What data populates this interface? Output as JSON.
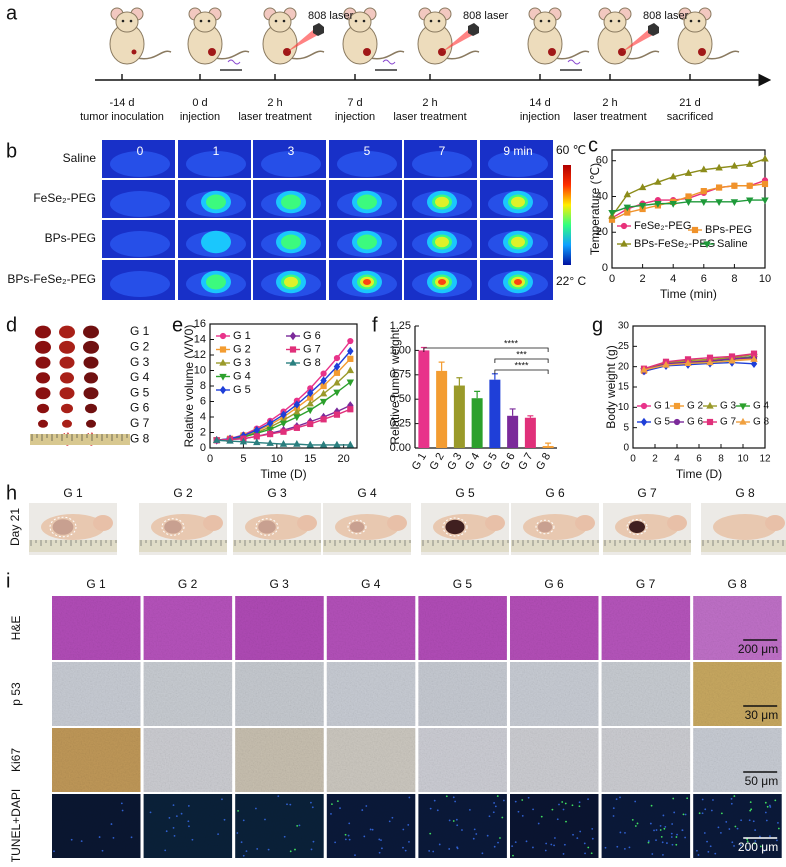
{
  "panel_labels": [
    "a",
    "b",
    "c",
    "d",
    "e",
    "f",
    "g",
    "h",
    "i"
  ],
  "timeline": {
    "laser": "808 laser",
    "events": [
      {
        "day": "-14 d",
        "label": "tumor inoculation"
      },
      {
        "day": "0 d",
        "label": "injection"
      },
      {
        "day": "2 h",
        "label": "laser treatment"
      },
      {
        "day": "7 d",
        "label": "injection"
      },
      {
        "day": "2 h",
        "label": "laser treatment"
      },
      {
        "day": "14 d",
        "label": "injection"
      },
      {
        "day": "2 h",
        "label": "laser treatment"
      },
      {
        "day": "21 d",
        "label": "sacrificed"
      }
    ]
  },
  "thermal": {
    "rows": [
      "Saline",
      "FeSe₂-PEG",
      "BPs-PEG",
      "BPs-FeSe₂-PEG"
    ],
    "times": [
      "0",
      "1",
      "3",
      "5",
      "7",
      "9 min"
    ],
    "scale_max": "60 ℃",
    "scale_min": "22° C"
  },
  "tumor_photos": {
    "labels": [
      "G 1",
      "G 2",
      "G 3",
      "G 4",
      "G 5",
      "G 6",
      "G 7",
      "G 8"
    ]
  },
  "mouse_photos": {
    "day": "Day 21",
    "groups": [
      "G 1",
      "G 2",
      "G 3",
      "G 4",
      "G 5",
      "G 6",
      "G 7",
      "G 8"
    ]
  },
  "histology": {
    "groups": [
      "G 1",
      "G 2",
      "G 3",
      "G 4",
      "G 5",
      "G 6",
      "G 7",
      "G 8"
    ],
    "stains": [
      "H&E",
      "p 53",
      "Ki67",
      "TUNEL+DAPI"
    ],
    "scale_bars": [
      "200 μm",
      "30 μm",
      "50 μm",
      "200 μm"
    ]
  },
  "chart_data": [
    {
      "type": "line",
      "ylabel": "Temperature (℃)",
      "xlabel": "Time (min)",
      "xlim": [
        0,
        10
      ],
      "xticks": [
        0,
        2,
        4,
        6,
        8,
        10
      ],
      "ylim": [
        0,
        66
      ],
      "yticks": [
        0,
        20,
        40,
        60
      ],
      "x": [
        0,
        1,
        2,
        3,
        4,
        5,
        6,
        7,
        8,
        9,
        10
      ],
      "series": [
        {
          "name": "FeSe₂-PEG",
          "color": "#e8317a",
          "marker": "circle",
          "values": [
            28,
            33,
            36,
            38,
            38,
            39,
            42,
            45,
            46,
            46,
            49
          ]
        },
        {
          "name": "BPs-PEG",
          "color": "#f0932b",
          "marker": "square",
          "values": [
            27,
            31,
            33,
            35,
            37,
            40,
            43,
            45,
            46,
            46,
            47
          ]
        },
        {
          "name": "BPs-FeSe₂-PEG",
          "color": "#8c8c1a",
          "marker": "triangle",
          "values": [
            29,
            41,
            45,
            48,
            51,
            53,
            55,
            56,
            57,
            58,
            61
          ]
        },
        {
          "name": "Saline",
          "color": "#1f9a3a",
          "marker": "triangle-down",
          "values": [
            31,
            34,
            35,
            36,
            36,
            37,
            37,
            37,
            37,
            38,
            38
          ]
        }
      ]
    },
    {
      "type": "line",
      "ylabel": "Relative volume (V/V0)",
      "xlabel": "Time (D)",
      "xlim": [
        0,
        22
      ],
      "xticks": [
        0,
        5,
        10,
        15,
        20
      ],
      "ylim": [
        0,
        16
      ],
      "yticks": [
        0,
        2,
        4,
        6,
        8,
        10,
        12,
        14,
        16
      ],
      "x": [
        1,
        3,
        5,
        7,
        9,
        11,
        13,
        15,
        17,
        19,
        21
      ],
      "series": [
        {
          "name": "G 1",
          "color": "#e8338a",
          "marker": "circle",
          "values": [
            1,
            1.2,
            1.7,
            2.5,
            3.5,
            4.7,
            6.1,
            7.7,
            9.6,
            11.6,
            13.8
          ]
        },
        {
          "name": "G 2",
          "color": "#f39c31",
          "marker": "square",
          "values": [
            1,
            1.2,
            1.6,
            2.2,
            3.0,
            4.0,
            5.2,
            6.5,
            8.0,
            9.7,
            11.5
          ]
        },
        {
          "name": "G 3",
          "color": "#9a9a2a",
          "marker": "triangle",
          "values": [
            1,
            1.1,
            1.5,
            2.0,
            2.7,
            3.6,
            4.6,
            5.7,
            7.0,
            8.4,
            10.0
          ]
        },
        {
          "name": "G 4",
          "color": "#2ca02c",
          "marker": "triangle-down",
          "values": [
            1,
            1.1,
            1.4,
            1.9,
            2.4,
            3.2,
            4.0,
            4.9,
            6.0,
            7.2,
            8.5
          ]
        },
        {
          "name": "G 5",
          "color": "#1f3fd8",
          "marker": "diamond",
          "values": [
            1,
            1.2,
            1.6,
            2.3,
            3.2,
            4.3,
            5.6,
            7.1,
            8.7,
            10.5,
            12.5
          ]
        },
        {
          "name": "G 6",
          "color": "#7b2a9a",
          "marker": "diamond",
          "values": [
            1,
            1.1,
            1.2,
            1.5,
            1.9,
            2.3,
            2.8,
            3.4,
            4.0,
            4.7,
            5.5
          ]
        },
        {
          "name": "G 7",
          "color": "#e0307a",
          "marker": "square",
          "values": [
            1,
            1.1,
            1.2,
            1.5,
            1.8,
            2.1,
            2.6,
            3.1,
            3.7,
            4.3,
            5.0
          ]
        },
        {
          "name": "G 8",
          "color": "#2a7f7f",
          "marker": "triangle",
          "values": [
            1,
            0.9,
            0.8,
            0.7,
            0.6,
            0.5,
            0.5,
            0.4,
            0.4,
            0.4,
            0.4
          ]
        }
      ]
    },
    {
      "type": "bar",
      "ylabel": "Relative tumor weight",
      "categories": [
        "G 1",
        "G 2",
        "G 3",
        "G 4",
        "G 5",
        "G 6",
        "G 7",
        "G 8"
      ],
      "values": [
        1.0,
        0.79,
        0.64,
        0.51,
        0.7,
        0.33,
        0.31,
        0.02
      ],
      "errors": [
        0.03,
        0.09,
        0.08,
        0.07,
        0.06,
        0.07,
        0.02,
        0.03
      ],
      "colors": [
        "#e8338a",
        "#f39c31",
        "#9a9a2a",
        "#2ca02c",
        "#1f3fd8",
        "#7b2a9a",
        "#e0307a",
        "#f39c31"
      ],
      "ylim": [
        0,
        1.25
      ],
      "yticks": [
        {
          "value": 0,
          "label": "0.00"
        },
        {
          "value": 0.25,
          "label": "0.25"
        },
        {
          "value": 0.5,
          "label": "0.50"
        },
        {
          "value": 0.75,
          "label": "0.75"
        },
        {
          "value": 1,
          "label": "1.00"
        },
        {
          "value": 1.25,
          "label": "1.25"
        }
      ],
      "annotations": [
        "****",
        "***",
        "****"
      ]
    },
    {
      "type": "line",
      "ylabel": "Body weight (g)",
      "xlabel": "Time (D)",
      "xlim": [
        0,
        12
      ],
      "xticks": [
        0,
        2,
        4,
        6,
        8,
        10,
        12
      ],
      "ylim": [
        0,
        30
      ],
      "yticks": [
        0,
        5,
        10,
        15,
        20,
        25,
        30
      ],
      "x": [
        1,
        3,
        5,
        7,
        9,
        11
      ],
      "series": [
        {
          "name": "G 1",
          "color": "#e8338a",
          "marker": "circle",
          "values": [
            18.8,
            20.5,
            21,
            21.5,
            22,
            22.5
          ]
        },
        {
          "name": "G 2",
          "color": "#f39c31",
          "marker": "square",
          "values": [
            19,
            20.8,
            21.2,
            21.5,
            21.8,
            22
          ]
        },
        {
          "name": "G 3",
          "color": "#9a9a2a",
          "marker": "triangle",
          "values": [
            19.2,
            21,
            21.5,
            21.8,
            22.2,
            23
          ]
        },
        {
          "name": "G 4",
          "color": "#2ca02c",
          "marker": "triangle-down",
          "values": [
            19,
            20.6,
            21,
            21.3,
            21.8,
            22.5
          ]
        },
        {
          "name": "G 5",
          "color": "#1f3fd8",
          "marker": "diamond",
          "values": [
            18.9,
            20.2,
            20.5,
            20.8,
            21,
            20.7
          ]
        },
        {
          "name": "G 6",
          "color": "#7b2a9a",
          "marker": "circle",
          "values": [
            19.1,
            20.7,
            21.1,
            21.4,
            21.9,
            22.2
          ]
        },
        {
          "name": "G 7",
          "color": "#e0307a",
          "marker": "square",
          "values": [
            19.5,
            21.2,
            21.8,
            22.2,
            22.5,
            23.2
          ]
        },
        {
          "name": "G 8",
          "color": "#f0a040",
          "marker": "triangle",
          "values": [
            19.2,
            20.4,
            20.8,
            21,
            21.4,
            21.8
          ]
        }
      ]
    }
  ]
}
